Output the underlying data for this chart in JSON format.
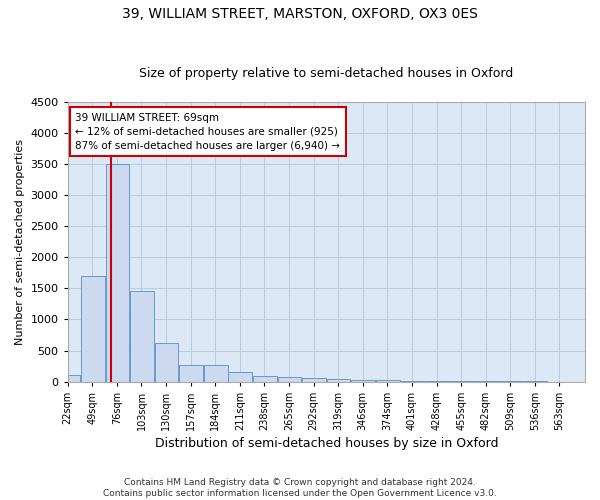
{
  "title": "39, WILLIAM STREET, MARSTON, OXFORD, OX3 0ES",
  "subtitle": "Size of property relative to semi-detached houses in Oxford",
  "xlabel": "Distribution of semi-detached houses by size in Oxford",
  "ylabel": "Number of semi-detached properties",
  "footer_line1": "Contains HM Land Registry data © Crown copyright and database right 2024.",
  "footer_line2": "Contains public sector information licensed under the Open Government Licence v3.0.",
  "annotation_title": "39 WILLIAM STREET: 69sqm",
  "annotation_line1": "← 12% of semi-detached houses are smaller (925)",
  "annotation_line2": "87% of semi-detached houses are larger (6,940) →",
  "property_size": 69,
  "bin_starts": [
    22,
    49,
    76,
    103,
    130,
    157,
    184,
    211,
    238,
    265,
    292,
    319,
    346,
    373,
    400,
    427,
    454,
    481,
    508,
    535
  ],
  "bin_width": 27,
  "bar_heights": [
    100,
    1700,
    3500,
    1450,
    620,
    270,
    270,
    155,
    90,
    80,
    55,
    50,
    30,
    20,
    15,
    10,
    8,
    5,
    5,
    5
  ],
  "bar_color": "#ccd9ee",
  "bar_edge_color": "#6699cc",
  "line_color": "#cc0000",
  "annotation_box_edge": "#cc0000",
  "plot_bg_color": "#dce8f5",
  "background_color": "#ffffff",
  "grid_color": "#b8cce4",
  "ylim": [
    0,
    4500
  ],
  "yticks": [
    0,
    500,
    1000,
    1500,
    2000,
    2500,
    3000,
    3500,
    4000,
    4500
  ],
  "tick_labels": [
    "22sqm",
    "49sqm",
    "76sqm",
    "103sqm",
    "130sqm",
    "157sqm",
    "184sqm",
    "211sqm",
    "238sqm",
    "265sqm",
    "292sqm",
    "319sqm",
    "346sqm",
    "374sqm",
    "401sqm",
    "428sqm",
    "455sqm",
    "482sqm",
    "509sqm",
    "536sqm",
    "563sqm"
  ]
}
